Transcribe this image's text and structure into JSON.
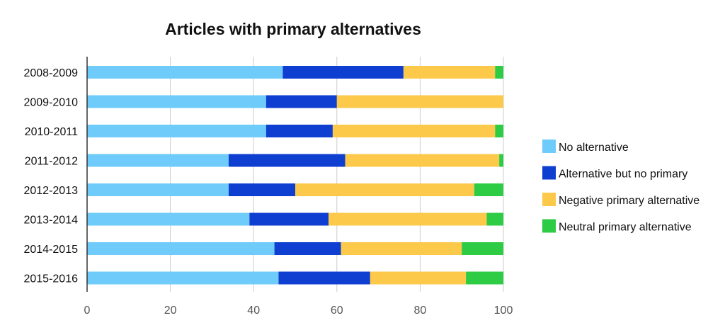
{
  "chart_data": {
    "type": "bar",
    "orientation": "horizontal",
    "stacked": true,
    "title": "Articles with primary alternatives",
    "xlabel": "",
    "ylabel": "",
    "xlim": [
      0,
      100
    ],
    "x_ticks": [
      "0",
      "20",
      "40",
      "60",
      "80",
      "100"
    ],
    "grid": true,
    "legend_position": "right",
    "categories": [
      "2008-2009",
      "2009-2010",
      "2010-2011",
      "2011-2012",
      "2012-2013",
      "2013-2014",
      "2014-2015",
      "2015-2016"
    ],
    "series": [
      {
        "name": "No alternative",
        "color": "#6ecbfa",
        "values": [
          47,
          43,
          43,
          34,
          34,
          39,
          45,
          46
        ]
      },
      {
        "name": "Alternative but no primary",
        "color": "#0f3fd1",
        "values": [
          29,
          17,
          16,
          28,
          16,
          19,
          16,
          22
        ]
      },
      {
        "name": "Negative primary alternative",
        "color": "#fcc94b",
        "values": [
          22,
          40,
          39,
          37,
          43,
          38,
          29,
          23
        ]
      },
      {
        "name": "Neutral primary alternative",
        "color": "#2ecb45",
        "values": [
          2,
          0,
          2,
          1,
          7,
          4,
          10,
          9
        ]
      }
    ]
  }
}
